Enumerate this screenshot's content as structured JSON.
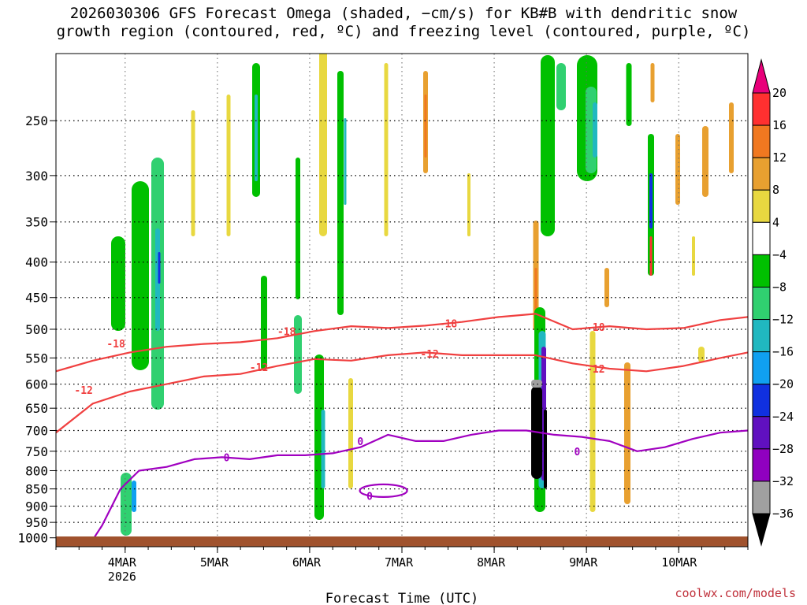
{
  "chart_data": {
    "type": "heatmap",
    "title_line1": "2026030306 GFS Forecast Omega (shaded, −cm/s) for KB#B with dendritic snow",
    "title_line2": "growth region (contoured, red, ºC) and freezing level (contoured, purple, ºC)",
    "xlabel": "Forecast Time (UTC)",
    "ylabel": "",
    "credit": "coolwx.com/models",
    "x_ticks": [
      {
        "t": 0.75,
        "label": "4MAR",
        "sub": "2026"
      },
      {
        "t": 1.75,
        "label": "5MAR",
        "sub": ""
      },
      {
        "t": 2.75,
        "label": "6MAR",
        "sub": ""
      },
      {
        "t": 3.75,
        "label": "7MAR",
        "sub": ""
      },
      {
        "t": 4.75,
        "label": "8MAR",
        "sub": ""
      },
      {
        "t": 5.75,
        "label": "9MAR",
        "sub": ""
      },
      {
        "t": 6.75,
        "label": "10MAR",
        "sub": ""
      }
    ],
    "xlim_days": [
      0.0,
      7.5
    ],
    "y_ticks": [
      250,
      300,
      350,
      400,
      450,
      500,
      550,
      600,
      650,
      700,
      750,
      800,
      850,
      900,
      950,
      1000
    ],
    "ylim_hpa": [
      200,
      1030
    ],
    "colorbar": {
      "labels": [
        "20",
        "16",
        "12",
        "8",
        "4",
        "−4",
        "−8",
        "−12",
        "−16",
        "−20",
        "−24",
        "−28",
        "−32",
        "−36"
      ],
      "colors": [
        "#e8007a",
        "#ff3030",
        "#f07820",
        "#e8a030",
        "#e8d840",
        "#ffffff",
        "#00c000",
        "#30d070",
        "#20b8c0",
        "#10a0f0",
        "#1030e0",
        "#6010c0",
        "#9000c0",
        "#a0a0a0",
        "#000000"
      ]
    },
    "series": [
      {
        "name": "-18",
        "color": "#f04040",
        "x": [
          0.0,
          0.4,
          0.8,
          1.2,
          1.6,
          2.0,
          2.4,
          2.8,
          3.2,
          3.6,
          4.0,
          4.4,
          4.8,
          5.2,
          5.6,
          6.0,
          6.4,
          6.8,
          7.2,
          7.5
        ],
        "y": [
          575,
          555,
          540,
          530,
          525,
          522,
          515,
          503,
          495,
          498,
          494,
          488,
          480,
          475,
          500,
          495,
          500,
          498,
          485,
          480
        ]
      },
      {
        "name": "-12",
        "color": "#f04040",
        "x": [
          0.0,
          0.4,
          0.8,
          1.2,
          1.6,
          2.0,
          2.4,
          2.8,
          3.2,
          3.6,
          4.0,
          4.4,
          4.8,
          5.2,
          5.6,
          6.0,
          6.4,
          6.8,
          7.2,
          7.5
        ],
        "y": [
          705,
          640,
          615,
          600,
          585,
          580,
          565,
          552,
          555,
          545,
          540,
          545,
          545,
          545,
          560,
          570,
          575,
          565,
          550,
          540
        ]
      },
      {
        "name": "0",
        "color": "#a000c0",
        "x": [
          0.35,
          0.5,
          0.7,
          0.9,
          1.2,
          1.5,
          1.8,
          2.1,
          2.4,
          2.7,
          3.0,
          3.3,
          3.6,
          3.9,
          4.2,
          4.5,
          4.8,
          5.1,
          5.4,
          5.7,
          6.0,
          6.3,
          6.6,
          6.9,
          7.2,
          7.5
        ],
        "y": [
          1030,
          960,
          850,
          800,
          790,
          770,
          765,
          770,
          760,
          760,
          755,
          740,
          710,
          725,
          725,
          710,
          700,
          700,
          710,
          715,
          725,
          750,
          740,
          720,
          705,
          700
        ]
      }
    ],
    "contour_labels": [
      {
        "text": "-18",
        "t": 0.65,
        "p": 524,
        "color": "#f04040"
      },
      {
        "text": "-18",
        "t": 2.5,
        "p": 503,
        "color": "#f04040"
      },
      {
        "text": "-18",
        "t": 4.25,
        "p": 490,
        "color": "#f04040"
      },
      {
        "text": "-18",
        "t": 5.85,
        "p": 496,
        "color": "#f04040"
      },
      {
        "text": "-12",
        "t": 0.3,
        "p": 612,
        "color": "#f04040"
      },
      {
        "text": "-12",
        "t": 2.2,
        "p": 567,
        "color": "#f04040"
      },
      {
        "text": "-12",
        "t": 4.05,
        "p": 542,
        "color": "#f04040"
      },
      {
        "text": "-12",
        "t": 5.85,
        "p": 570,
        "color": "#f04040"
      },
      {
        "text": "0",
        "t": 1.85,
        "p": 765,
        "color": "#a000c0"
      },
      {
        "text": "0",
        "t": 3.3,
        "p": 725,
        "color": "#a000c0"
      },
      {
        "text": "0",
        "t": 3.4,
        "p": 870,
        "color": "#a000c0"
      },
      {
        "text": "0",
        "t": 5.65,
        "p": 750,
        "color": "#a000c0"
      }
    ]
  }
}
